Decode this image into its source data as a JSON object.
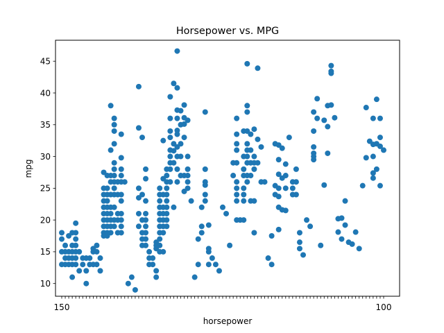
{
  "chart_data": {
    "type": "scatter",
    "title": "Horsepower vs. MPG",
    "xlabel": "horsepower",
    "ylabel": "mpg",
    "x_axis_kind": "categorical",
    "grid": false,
    "legend": "none",
    "marker_color": "#1f77b4",
    "ylim": [
      8.0,
      48.3
    ],
    "yticks": [
      10,
      15,
      20,
      25,
      30,
      35,
      40,
      45
    ],
    "x_tick_labels_note": "overlapping horsepower category labels; first visible '150', last visible '100'",
    "x_first_tick_label": "150",
    "x_last_tick_label": "100",
    "points": [
      {
        "x": 0,
        "y": 18
      },
      {
        "x": 0,
        "y": 17
      },
      {
        "x": 0,
        "y": 15
      },
      {
        "x": 0,
        "y": 13
      },
      {
        "x": 1,
        "y": 14
      },
      {
        "x": 1,
        "y": 15
      },
      {
        "x": 1,
        "y": 16
      },
      {
        "x": 1,
        "y": 13
      },
      {
        "x": 2,
        "y": 17.5
      },
      {
        "x": 2,
        "y": 15
      },
      {
        "x": 2,
        "y": 14
      },
      {
        "x": 2,
        "y": 13
      },
      {
        "x": 3,
        "y": 18
      },
      {
        "x": 3,
        "y": 16
      },
      {
        "x": 3,
        "y": 15
      },
      {
        "x": 3,
        "y": 11
      },
      {
        "x": 3,
        "y": 13
      },
      {
        "x": 3,
        "y": 14
      },
      {
        "x": 4,
        "y": 19.5
      },
      {
        "x": 4,
        "y": 18
      },
      {
        "x": 4,
        "y": 17
      },
      {
        "x": 4,
        "y": 16
      },
      {
        "x": 4,
        "y": 15
      },
      {
        "x": 4,
        "y": 13
      },
      {
        "x": 4,
        "y": 14
      },
      {
        "x": 5,
        "y": 15
      },
      {
        "x": 5,
        "y": 12
      },
      {
        "x": 6,
        "y": 14
      },
      {
        "x": 6,
        "y": 13
      },
      {
        "x": 7,
        "y": 14
      },
      {
        "x": 7,
        "y": 10
      },
      {
        "x": 7,
        "y": 12
      },
      {
        "x": 8,
        "y": 14
      },
      {
        "x": 8,
        "y": 13
      },
      {
        "x": 9,
        "y": 15.5
      },
      {
        "x": 9,
        "y": 15
      },
      {
        "x": 9,
        "y": 13
      },
      {
        "x": 10,
        "y": 15
      },
      {
        "x": 10,
        "y": 16
      },
      {
        "x": 10,
        "y": 13
      },
      {
        "x": 11,
        "y": 14
      },
      {
        "x": 11,
        "y": 12
      },
      {
        "x": 12,
        "y": 27.5
      },
      {
        "x": 12,
        "y": 25
      },
      {
        "x": 12,
        "y": 24
      },
      {
        "x": 12,
        "y": 23
      },
      {
        "x": 12,
        "y": 22
      },
      {
        "x": 12,
        "y": 21
      },
      {
        "x": 12,
        "y": 20
      },
      {
        "x": 12,
        "y": 19
      },
      {
        "x": 12,
        "y": 18
      },
      {
        "x": 12,
        "y": 17.5
      },
      {
        "x": 13,
        "y": 27
      },
      {
        "x": 13,
        "y": 25
      },
      {
        "x": 13,
        "y": 24
      },
      {
        "x": 13,
        "y": 23
      },
      {
        "x": 13,
        "y": 22
      },
      {
        "x": 13,
        "y": 21
      },
      {
        "x": 13,
        "y": 20
      },
      {
        "x": 13,
        "y": 19
      },
      {
        "x": 13,
        "y": 18
      },
      {
        "x": 13,
        "y": 17.5
      },
      {
        "x": 14,
        "y": 38
      },
      {
        "x": 14,
        "y": 31
      },
      {
        "x": 14,
        "y": 27
      },
      {
        "x": 14,
        "y": 26
      },
      {
        "x": 14,
        "y": 24
      },
      {
        "x": 14,
        "y": 22
      },
      {
        "x": 14,
        "y": 21
      },
      {
        "x": 14,
        "y": 20
      },
      {
        "x": 14,
        "y": 19
      },
      {
        "x": 14,
        "y": 18
      },
      {
        "x": 15,
        "y": 36
      },
      {
        "x": 15,
        "y": 35
      },
      {
        "x": 15,
        "y": 34
      },
      {
        "x": 15,
        "y": 32
      },
      {
        "x": 15,
        "y": 29
      },
      {
        "x": 15,
        "y": 28
      },
      {
        "x": 15,
        "y": 27
      },
      {
        "x": 15,
        "y": 26
      },
      {
        "x": 15,
        "y": 25
      },
      {
        "x": 15,
        "y": 24
      },
      {
        "x": 15,
        "y": 22
      },
      {
        "x": 15,
        "y": 20
      },
      {
        "x": 15,
        "y": 19
      },
      {
        "x": 16,
        "y": 26
      },
      {
        "x": 16,
        "y": 24
      },
      {
        "x": 16,
        "y": 21
      },
      {
        "x": 16,
        "y": 20
      },
      {
        "x": 16,
        "y": 18
      },
      {
        "x": 17,
        "y": 33.5
      },
      {
        "x": 17,
        "y": 29.8
      },
      {
        "x": 17,
        "y": 28
      },
      {
        "x": 17,
        "y": 27
      },
      {
        "x": 17,
        "y": 26
      },
      {
        "x": 17,
        "y": 24
      },
      {
        "x": 17,
        "y": 23
      },
      {
        "x": 17,
        "y": 21
      },
      {
        "x": 17,
        "y": 20
      },
      {
        "x": 17,
        "y": 19
      },
      {
        "x": 17,
        "y": 18
      },
      {
        "x": 18,
        "y": 26
      },
      {
        "x": 19,
        "y": 10
      },
      {
        "x": 20,
        "y": 11
      },
      {
        "x": 21,
        "y": 9
      },
      {
        "x": 22,
        "y": 41
      },
      {
        "x": 22,
        "y": 34.5
      },
      {
        "x": 22,
        "y": 25
      },
      {
        "x": 22,
        "y": 23.5
      },
      {
        "x": 22,
        "y": 21
      },
      {
        "x": 22,
        "y": 19
      },
      {
        "x": 23,
        "y": 33
      },
      {
        "x": 23,
        "y": 24
      },
      {
        "x": 23,
        "y": 20
      },
      {
        "x": 23,
        "y": 18
      },
      {
        "x": 23,
        "y": 17
      },
      {
        "x": 23,
        "y": 16
      },
      {
        "x": 24,
        "y": 28
      },
      {
        "x": 24,
        "y": 26.5
      },
      {
        "x": 24,
        "y": 23
      },
      {
        "x": 24,
        "y": 21
      },
      {
        "x": 24,
        "y": 20
      },
      {
        "x": 24,
        "y": 19
      },
      {
        "x": 24,
        "y": 18
      },
      {
        "x": 24,
        "y": 17
      },
      {
        "x": 24,
        "y": 16
      },
      {
        "x": 25,
        "y": 15
      },
      {
        "x": 25,
        "y": 14
      },
      {
        "x": 25,
        "y": 13
      },
      {
        "x": 26,
        "y": 14
      },
      {
        "x": 26,
        "y": 13
      },
      {
        "x": 27,
        "y": 16.5
      },
      {
        "x": 27,
        "y": 16
      },
      {
        "x": 27,
        "y": 15.5
      },
      {
        "x": 27,
        "y": 12
      },
      {
        "x": 27,
        "y": 11
      },
      {
        "x": 28,
        "y": 25
      },
      {
        "x": 28,
        "y": 24
      },
      {
        "x": 28,
        "y": 23
      },
      {
        "x": 28,
        "y": 22
      },
      {
        "x": 28,
        "y": 21
      },
      {
        "x": 28,
        "y": 20
      },
      {
        "x": 28,
        "y": 19
      },
      {
        "x": 28,
        "y": 18
      },
      {
        "x": 28,
        "y": 17
      },
      {
        "x": 28,
        "y": 16
      },
      {
        "x": 28,
        "y": 15
      },
      {
        "x": 29,
        "y": 32.5
      },
      {
        "x": 29,
        "y": 26.5
      },
      {
        "x": 29,
        "y": 24
      },
      {
        "x": 29,
        "y": 22
      },
      {
        "x": 29,
        "y": 21
      },
      {
        "x": 29,
        "y": 20
      },
      {
        "x": 29,
        "y": 19
      },
      {
        "x": 29,
        "y": 18
      },
      {
        "x": 29,
        "y": 15
      },
      {
        "x": 30,
        "y": 28
      },
      {
        "x": 30,
        "y": 27
      },
      {
        "x": 30,
        "y": 26
      },
      {
        "x": 30,
        "y": 25
      },
      {
        "x": 30,
        "y": 24
      },
      {
        "x": 30,
        "y": 23
      },
      {
        "x": 30,
        "y": 22
      },
      {
        "x": 30,
        "y": 21
      },
      {
        "x": 30,
        "y": 20
      },
      {
        "x": 30,
        "y": 19
      },
      {
        "x": 31,
        "y": 39.4
      },
      {
        "x": 31,
        "y": 36
      },
      {
        "x": 31,
        "y": 34
      },
      {
        "x": 31,
        "y": 33
      },
      {
        "x": 31,
        "y": 31
      },
      {
        "x": 31,
        "y": 30
      },
      {
        "x": 31,
        "y": 29
      },
      {
        "x": 31,
        "y": 28
      },
      {
        "x": 31,
        "y": 26
      },
      {
        "x": 32,
        "y": 41.5
      },
      {
        "x": 32,
        "y": 32
      },
      {
        "x": 32,
        "y": 30.9
      },
      {
        "x": 32,
        "y": 29
      },
      {
        "x": 32,
        "y": 22
      },
      {
        "x": 33,
        "y": 46.6
      },
      {
        "x": 33,
        "y": 40.8
      },
      {
        "x": 33,
        "y": 37.3
      },
      {
        "x": 33,
        "y": 36
      },
      {
        "x": 33,
        "y": 34.1
      },
      {
        "x": 33,
        "y": 33.5
      },
      {
        "x": 33,
        "y": 31.5
      },
      {
        "x": 33,
        "y": 30
      },
      {
        "x": 33,
        "y": 28
      },
      {
        "x": 33,
        "y": 26
      },
      {
        "x": 34,
        "y": 37.2
      },
      {
        "x": 34,
        "y": 35
      },
      {
        "x": 34,
        "y": 32
      },
      {
        "x": 34,
        "y": 30
      },
      {
        "x": 34,
        "y": 27
      },
      {
        "x": 35,
        "y": 38.1
      },
      {
        "x": 35,
        "y": 36.1
      },
      {
        "x": 35,
        "y": 35.1
      },
      {
        "x": 35,
        "y": 33
      },
      {
        "x": 35,
        "y": 27
      },
      {
        "x": 35,
        "y": 24.5
      },
      {
        "x": 36,
        "y": 35.7
      },
      {
        "x": 36,
        "y": 30
      },
      {
        "x": 36,
        "y": 28
      },
      {
        "x": 36,
        "y": 27
      },
      {
        "x": 36,
        "y": 26
      },
      {
        "x": 36,
        "y": 25
      },
      {
        "x": 37,
        "y": 23
      },
      {
        "x": 38,
        "y": 11
      },
      {
        "x": 39,
        "y": 17
      },
      {
        "x": 39,
        "y": 13
      },
      {
        "x": 40,
        "y": 22
      },
      {
        "x": 40,
        "y": 19
      },
      {
        "x": 40,
        "y": 18
      },
      {
        "x": 41,
        "y": 37
      },
      {
        "x": 41,
        "y": 28
      },
      {
        "x": 41,
        "y": 26
      },
      {
        "x": 41,
        "y": 25.5
      },
      {
        "x": 41,
        "y": 24
      },
      {
        "x": 41,
        "y": 23
      },
      {
        "x": 42,
        "y": 19.2
      },
      {
        "x": 42,
        "y": 15.5
      },
      {
        "x": 42,
        "y": 15
      },
      {
        "x": 42,
        "y": 13
      },
      {
        "x": 43,
        "y": 14
      },
      {
        "x": 44,
        "y": 13
      },
      {
        "x": 45,
        "y": 12
      },
      {
        "x": 46,
        "y": 22
      },
      {
        "x": 47,
        "y": 21
      },
      {
        "x": 48,
        "y": 16
      },
      {
        "x": 49,
        "y": 29
      },
      {
        "x": 49,
        "y": 27
      },
      {
        "x": 50,
        "y": 36
      },
      {
        "x": 50,
        "y": 33.5
      },
      {
        "x": 50,
        "y": 32
      },
      {
        "x": 50,
        "y": 31
      },
      {
        "x": 50,
        "y": 29
      },
      {
        "x": 50,
        "y": 26
      },
      {
        "x": 50,
        "y": 25
      },
      {
        "x": 50,
        "y": 24
      },
      {
        "x": 50,
        "y": 23
      },
      {
        "x": 50,
        "y": 20
      },
      {
        "x": 51,
        "y": 20
      },
      {
        "x": 52,
        "y": 34
      },
      {
        "x": 52,
        "y": 30
      },
      {
        "x": 52,
        "y": 28
      },
      {
        "x": 52,
        "y": 27
      },
      {
        "x": 52,
        "y": 25
      },
      {
        "x": 52,
        "y": 24
      },
      {
        "x": 52,
        "y": 23
      },
      {
        "x": 52,
        "y": 20
      },
      {
        "x": 53,
        "y": 44.6
      },
      {
        "x": 53,
        "y": 38
      },
      {
        "x": 53,
        "y": 37
      },
      {
        "x": 53,
        "y": 34
      },
      {
        "x": 53,
        "y": 32
      },
      {
        "x": 53,
        "y": 31
      },
      {
        "x": 53,
        "y": 30
      },
      {
        "x": 53,
        "y": 29
      },
      {
        "x": 53,
        "y": 27
      },
      {
        "x": 53,
        "y": 26
      },
      {
        "x": 54,
        "y": 33.5
      },
      {
        "x": 54,
        "y": 31
      },
      {
        "x": 54,
        "y": 29
      },
      {
        "x": 54,
        "y": 27
      },
      {
        "x": 54,
        "y": 23
      },
      {
        "x": 55,
        "y": 34.3
      },
      {
        "x": 55,
        "y": 30
      },
      {
        "x": 55,
        "y": 29
      },
      {
        "x": 55,
        "y": 28
      },
      {
        "x": 55,
        "y": 23
      },
      {
        "x": 55,
        "y": 18
      },
      {
        "x": 56,
        "y": 43.9
      },
      {
        "x": 56,
        "y": 32.7
      },
      {
        "x": 56,
        "y": 29
      },
      {
        "x": 57,
        "y": 31.5
      },
      {
        "x": 57,
        "y": 26
      },
      {
        "x": 58,
        "y": 26
      },
      {
        "x": 59,
        "y": 14
      },
      {
        "x": 60,
        "y": 13
      },
      {
        "x": 60,
        "y": 17.5
      },
      {
        "x": 61,
        "y": 32
      },
      {
        "x": 61,
        "y": 25.4
      },
      {
        "x": 61,
        "y": 24
      },
      {
        "x": 62,
        "y": 31.8
      },
      {
        "x": 62,
        "y": 29.5
      },
      {
        "x": 62,
        "y": 27.2
      },
      {
        "x": 62,
        "y": 25
      },
      {
        "x": 62,
        "y": 23.7
      },
      {
        "x": 62,
        "y": 22
      },
      {
        "x": 62,
        "y": 18.5
      },
      {
        "x": 63,
        "y": 31.3
      },
      {
        "x": 63,
        "y": 26.6
      },
      {
        "x": 63,
        "y": 21.6
      },
      {
        "x": 64,
        "y": 28.8
      },
      {
        "x": 64,
        "y": 27
      },
      {
        "x": 64,
        "y": 25
      },
      {
        "x": 64,
        "y": 21.5
      },
      {
        "x": 65,
        "y": 33
      },
      {
        "x": 66,
        "y": 26
      },
      {
        "x": 66,
        "y": 25
      },
      {
        "x": 66,
        "y": 24
      },
      {
        "x": 67,
        "y": 28
      },
      {
        "x": 67,
        "y": 26
      },
      {
        "x": 67,
        "y": 24
      },
      {
        "x": 68,
        "y": 18
      },
      {
        "x": 68,
        "y": 16.5
      },
      {
        "x": 68,
        "y": 15.5
      },
      {
        "x": 69,
        "y": 14.5
      },
      {
        "x": 70,
        "y": 20
      },
      {
        "x": 71,
        "y": 19
      },
      {
        "x": 72,
        "y": 37
      },
      {
        "x": 72,
        "y": 34
      },
      {
        "x": 72,
        "y": 31.5
      },
      {
        "x": 72,
        "y": 30.5
      },
      {
        "x": 72,
        "y": 30
      },
      {
        "x": 72,
        "y": 29.5
      },
      {
        "x": 73,
        "y": 39.1
      },
      {
        "x": 73,
        "y": 36
      },
      {
        "x": 74,
        "y": 16
      },
      {
        "x": 75,
        "y": 35.7
      },
      {
        "x": 75,
        "y": 25.5
      },
      {
        "x": 76,
        "y": 38
      },
      {
        "x": 76,
        "y": 34.7
      },
      {
        "x": 76,
        "y": 30.5
      },
      {
        "x": 77,
        "y": 44.3
      },
      {
        "x": 77,
        "y": 43.4
      },
      {
        "x": 77,
        "y": 43.1
      },
      {
        "x": 77,
        "y": 38.1
      },
      {
        "x": 78,
        "y": 36.1
      },
      {
        "x": 79,
        "y": 20.2
      },
      {
        "x": 79,
        "y": 18.1
      },
      {
        "x": 80,
        "y": 20.3
      },
      {
        "x": 80,
        "y": 17
      },
      {
        "x": 81,
        "y": 23
      },
      {
        "x": 81,
        "y": 19.2
      },
      {
        "x": 82,
        "y": 16.5
      },
      {
        "x": 83,
        "y": 16.2
      },
      {
        "x": 84,
        "y": 18.1
      },
      {
        "x": 85,
        "y": 15.5
      },
      {
        "x": 86,
        "y": 25.4
      },
      {
        "x": 87,
        "y": 37.7
      },
      {
        "x": 87,
        "y": 29.8
      },
      {
        "x": 88,
        "y": 32.4
      },
      {
        "x": 89,
        "y": 31.9
      },
      {
        "x": 89,
        "y": 36
      },
      {
        "x": 89,
        "y": 27.4
      },
      {
        "x": 89,
        "y": 26.6
      },
      {
        "x": 89,
        "y": 30
      },
      {
        "x": 90,
        "y": 39
      },
      {
        "x": 90,
        "y": 32
      },
      {
        "x": 90,
        "y": 28
      },
      {
        "x": 91,
        "y": 36
      },
      {
        "x": 91,
        "y": 33
      },
      {
        "x": 91,
        "y": 31.6
      },
      {
        "x": 91,
        "y": 25.4
      },
      {
        "x": 92,
        "y": 31
      }
    ]
  }
}
